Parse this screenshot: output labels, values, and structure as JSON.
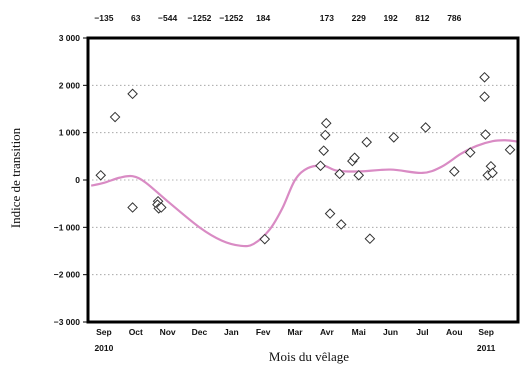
{
  "chart_data": {
    "type": "scatter",
    "title": "",
    "xlabel": "Mois du vêlage",
    "ylabel": "Indice de transition",
    "ylim": [
      -3000,
      3000
    ],
    "yticks": [
      3000,
      2000,
      1000,
      0,
      -1000,
      -2000,
      -3000
    ],
    "ytick_labels": [
      "3 000",
      "2 000",
      "1 000",
      "0",
      "−1 000",
      "−2 000",
      "−3 000"
    ],
    "x_categories": [
      "Sep",
      "Oct",
      "Nov",
      "Dec",
      "Jan",
      "Fev",
      "Mar",
      "Avr",
      "Mai",
      "Jun",
      "Jul",
      "Aou",
      "Sep"
    ],
    "x_year_labels": [
      {
        "label": "2010",
        "month_index": 0
      },
      {
        "label": "2011",
        "month_index": 12
      }
    ],
    "monthly_top_values": [
      "−135",
      "63",
      "−544",
      "−1252",
      "−1252",
      "184",
      "173",
      "229",
      "192",
      "812",
      "786"
    ],
    "top_values_month_positions": [
      0,
      1,
      2,
      3,
      4,
      5,
      7,
      8,
      9,
      10,
      11
    ],
    "grid": "horizontal dotted",
    "marker": "open diamond",
    "series": [
      {
        "points": [
          {
            "x": -0.1,
            "y": 100
          },
          {
            "x": 0.35,
            "y": 1330
          },
          {
            "x": 0.9,
            "y": 1820
          },
          {
            "x": 0.9,
            "y": -580
          },
          {
            "x": 1.7,
            "y": -450
          },
          {
            "x": 1.68,
            "y": -520
          },
          {
            "x": 1.72,
            "y": -600
          },
          {
            "x": 1.8,
            "y": -580
          },
          {
            "x": 5.05,
            "y": -1250
          },
          {
            "x": 6.8,
            "y": 300
          },
          {
            "x": 6.9,
            "y": 620
          },
          {
            "x": 6.95,
            "y": 950
          },
          {
            "x": 6.98,
            "y": 1200
          },
          {
            "x": 7.1,
            "y": -710
          },
          {
            "x": 7.4,
            "y": 130
          },
          {
            "x": 7.45,
            "y": -940
          },
          {
            "x": 7.8,
            "y": 400
          },
          {
            "x": 7.87,
            "y": 470
          },
          {
            "x": 8.0,
            "y": 100
          },
          {
            "x": 8.25,
            "y": 800
          },
          {
            "x": 8.35,
            "y": -1240
          },
          {
            "x": 9.1,
            "y": 900
          },
          {
            "x": 10.1,
            "y": 1110
          },
          {
            "x": 11.0,
            "y": 180
          },
          {
            "x": 11.5,
            "y": 580
          },
          {
            "x": 11.95,
            "y": 2170
          },
          {
            "x": 11.95,
            "y": 1760
          },
          {
            "x": 11.98,
            "y": 960
          },
          {
            "x": 12.05,
            "y": 100
          },
          {
            "x": 12.15,
            "y": 290
          },
          {
            "x": 12.2,
            "y": 150
          },
          {
            "x": 12.75,
            "y": 640
          }
        ]
      },
      {
        "type": "line",
        "color": "#d98bc4",
        "x": [
          -0.4,
          0,
          0.5,
          0.9,
          1.3,
          2.0,
          3.0,
          3.7,
          4.3,
          4.7,
          5.2,
          5.6,
          6.0,
          6.4,
          6.9,
          7.3,
          8.0,
          9.0,
          10.0,
          10.6,
          11.2,
          11.7,
          12.2,
          12.6,
          13.0
        ],
        "y": [
          -120,
          -60,
          50,
          80,
          -50,
          -450,
          -1000,
          -1280,
          -1390,
          -1350,
          -1050,
          -600,
          0,
          250,
          300,
          200,
          180,
          220,
          150,
          280,
          550,
          720,
          820,
          840,
          810
        ]
      }
    ]
  }
}
